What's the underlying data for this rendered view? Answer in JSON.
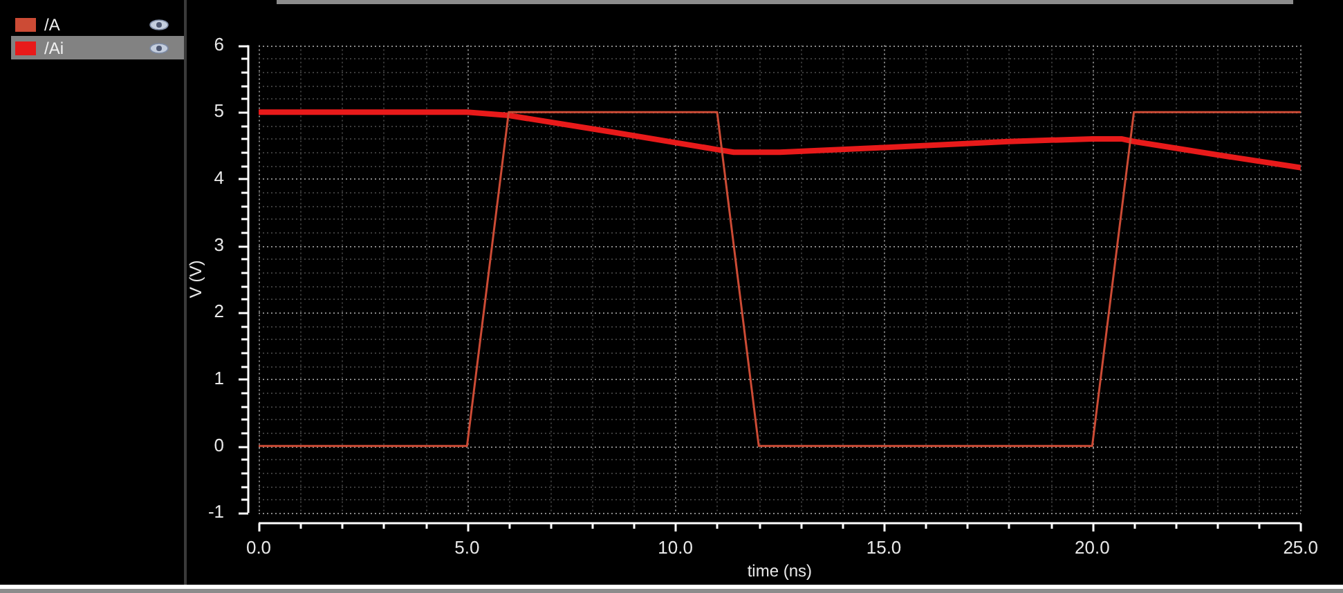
{
  "chart_data": {
    "type": "line",
    "xlabel": "time (ns)",
    "ylabel": "V (V)",
    "xlim": [
      0,
      25
    ],
    "ylim": [
      -1,
      6
    ],
    "xticks": [
      {
        "value": 0,
        "label": "0.0"
      },
      {
        "value": 1,
        "label": null
      },
      {
        "value": 2,
        "label": null
      },
      {
        "value": 3,
        "label": null
      },
      {
        "value": 4,
        "label": null
      },
      {
        "value": 5,
        "label": "5.0"
      },
      {
        "value": 6,
        "label": null
      },
      {
        "value": 7,
        "label": null
      },
      {
        "value": 8,
        "label": null
      },
      {
        "value": 9,
        "label": null
      },
      {
        "value": 10,
        "label": "10.0"
      },
      {
        "value": 11,
        "label": null
      },
      {
        "value": 12,
        "label": null
      },
      {
        "value": 13,
        "label": null
      },
      {
        "value": 14,
        "label": null
      },
      {
        "value": 15,
        "label": "15.0"
      },
      {
        "value": 16,
        "label": null
      },
      {
        "value": 17,
        "label": null
      },
      {
        "value": 18,
        "label": null
      },
      {
        "value": 19,
        "label": null
      },
      {
        "value": 20,
        "label": "20.0"
      },
      {
        "value": 21,
        "label": null
      },
      {
        "value": 22,
        "label": null
      },
      {
        "value": 23,
        "label": null
      },
      {
        "value": 24,
        "label": null
      },
      {
        "value": 25,
        "label": "25.0"
      }
    ],
    "yticks": [
      -1,
      {
        "value": -0.8,
        "label": null
      },
      {
        "value": -0.6,
        "label": null
      },
      {
        "value": -0.4,
        "label": null
      },
      {
        "value": -0.2,
        "label": null
      },
      0,
      {
        "value": 0.2,
        "label": null
      },
      {
        "value": 0.4,
        "label": null
      },
      {
        "value": 0.6,
        "label": null
      },
      {
        "value": 0.8,
        "label": null
      },
      1,
      {
        "value": 1.2,
        "label": null
      },
      {
        "value": 1.4,
        "label": null
      },
      {
        "value": 1.6,
        "label": null
      },
      {
        "value": 1.8,
        "label": null
      },
      2,
      {
        "value": 2.2,
        "label": null
      },
      {
        "value": 2.4,
        "label": null
      },
      {
        "value": 2.6,
        "label": null
      },
      {
        "value": 2.8,
        "label": null
      },
      3,
      {
        "value": 3.2,
        "label": null
      },
      {
        "value": 3.4,
        "label": null
      },
      {
        "value": 3.6,
        "label": null
      },
      {
        "value": 3.8,
        "label": null
      },
      4,
      {
        "value": 4.2,
        "label": null
      },
      {
        "value": 4.4,
        "label": null
      },
      {
        "value": 4.6,
        "label": null
      },
      {
        "value": 4.8,
        "label": null
      },
      5,
      {
        "value": 5.2,
        "label": null
      },
      {
        "value": 5.4,
        "label": null
      },
      {
        "value": 5.6,
        "label": null
      },
      {
        "value": 5.8,
        "label": null
      },
      6
    ],
    "grid": true,
    "legend": "left",
    "marker": "none",
    "series": [
      {
        "name": "/A",
        "color": "#cc4b35",
        "x": [
          0,
          5,
          6,
          11,
          12,
          20,
          21,
          25
        ],
        "values": [
          0,
          0,
          5,
          5,
          0,
          0,
          5,
          5
        ]
      },
      {
        "name": "/Ai",
        "color": "#e81a1a",
        "x": [
          0,
          5,
          6,
          8.5,
          11,
          11.4,
          12.5,
          15,
          18,
          20,
          20.7,
          21,
          23,
          25
        ],
        "values": [
          5,
          5,
          4.95,
          4.7,
          4.44,
          4.4,
          4.4,
          4.47,
          4.56,
          4.6,
          4.6,
          4.56,
          4.36,
          4.17
        ]
      }
    ]
  }
}
